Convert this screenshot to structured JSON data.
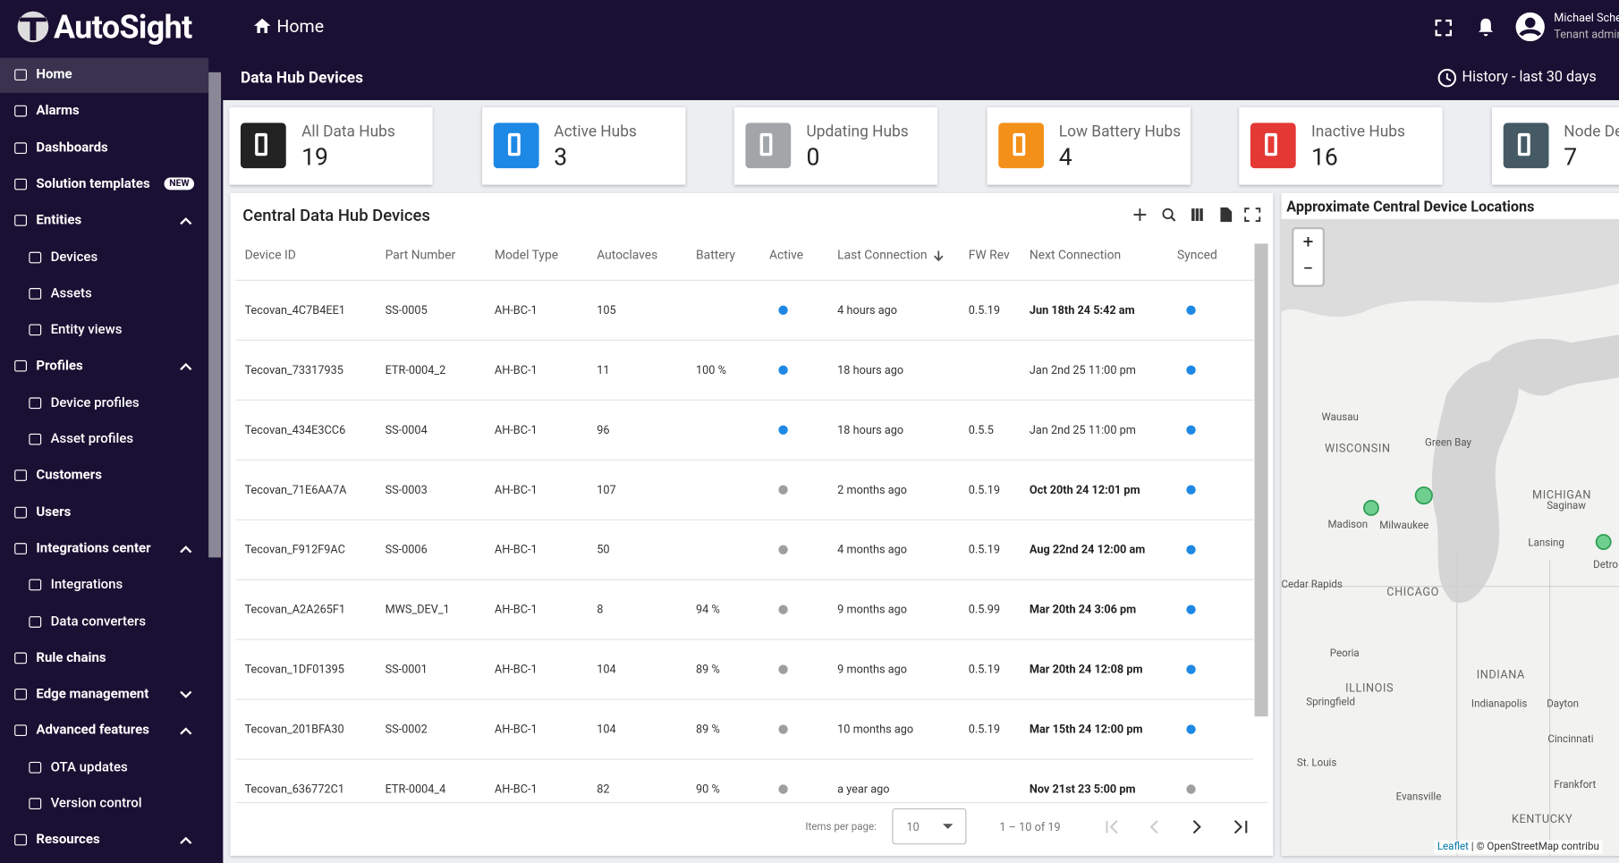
{
  "header": {
    "logo": "AutoSight",
    "page": "Home",
    "user_name": "Michael Sche",
    "user_role": "Tenant admin",
    "section_title": "Data Hub Devices",
    "history": "History - last 30 days"
  },
  "sidebar": {
    "items": [
      {
        "label": "Home",
        "level": 0,
        "active": true
      },
      {
        "label": "Alarms",
        "level": 0
      },
      {
        "label": "Dashboards",
        "level": 0
      },
      {
        "label": "Solution templates",
        "level": 0,
        "badge": "NEW"
      },
      {
        "label": "Entities",
        "level": 0,
        "chevron": "up"
      },
      {
        "label": "Devices",
        "level": 1
      },
      {
        "label": "Assets",
        "level": 1
      },
      {
        "label": "Entity views",
        "level": 1
      },
      {
        "label": "Profiles",
        "level": 0,
        "chevron": "up"
      },
      {
        "label": "Device profiles",
        "level": 1
      },
      {
        "label": "Asset profiles",
        "level": 1
      },
      {
        "label": "Customers",
        "level": 0
      },
      {
        "label": "Users",
        "level": 0
      },
      {
        "label": "Integrations center",
        "level": 0,
        "chevron": "up"
      },
      {
        "label": "Integrations",
        "level": 1
      },
      {
        "label": "Data converters",
        "level": 1
      },
      {
        "label": "Rule chains",
        "level": 0
      },
      {
        "label": "Edge management",
        "level": 0,
        "chevron": "down"
      },
      {
        "label": "Advanced features",
        "level": 0,
        "chevron": "up"
      },
      {
        "label": "OTA updates",
        "level": 1
      },
      {
        "label": "Version control",
        "level": 1
      },
      {
        "label": "Resources",
        "level": 0,
        "chevron": "up"
      }
    ]
  },
  "cards": [
    {
      "label": "All Data Hubs",
      "value": "19",
      "color": "#222222"
    },
    {
      "label": "Active Hubs",
      "value": "3",
      "color": "#1e88e5"
    },
    {
      "label": "Updating Hubs",
      "value": "0",
      "color": "#a2a6a9"
    },
    {
      "label": "Low Battery Hubs",
      "value": "4",
      "color": "#f39019"
    },
    {
      "label": "Inactive Hubs",
      "value": "16",
      "color": "#e53935"
    },
    {
      "label": "Node De",
      "value": "7",
      "color": "#455a64"
    }
  ],
  "table": {
    "title": "Central Data Hub Devices",
    "columns": [
      "Device ID",
      "Part Number",
      "Model Type",
      "Autoclaves",
      "Battery",
      "Active",
      "Last Connection",
      "FW Rev",
      "Next Connection",
      "Synced"
    ],
    "rows": [
      {
        "cells": [
          "Tecovan_4C7B4EE1",
          "SS-0005",
          "AH-BC-1",
          "105",
          "",
          "",
          "4 hours ago",
          "0.5.19",
          "Jun 18th 24 5:42 am",
          ""
        ],
        "active_color": "#1e88e5",
        "synced_color": "#1e88e5",
        "next_bold": true
      },
      {
        "cells": [
          "Tecovan_73317935",
          "ETR-0004_2",
          "AH-BC-1",
          "11",
          "100 %",
          "",
          "18 hours ago",
          "",
          "Jan 2nd 25 11:00 pm",
          ""
        ],
        "active_color": "#1e88e5",
        "synced_color": "#1e88e5",
        "next_bold": false
      },
      {
        "cells": [
          "Tecovan_434E3CC6",
          "SS-0004",
          "AH-BC-1",
          "96",
          "",
          "",
          "18 hours ago",
          "0.5.5",
          "Jan 2nd 25 11:00 pm",
          ""
        ],
        "active_color": "#1e88e5",
        "synced_color": "#1e88e5",
        "next_bold": false
      },
      {
        "cells": [
          "Tecovan_71E6AA7A",
          "SS-0003",
          "AH-BC-1",
          "107",
          "",
          "",
          "2 months ago",
          "0.5.19",
          "Oct 20th 24 12:01 pm",
          ""
        ],
        "active_color": "#9e9e9e",
        "synced_color": "#1e88e5",
        "next_bold": true
      },
      {
        "cells": [
          "Tecovan_F912F9AC",
          "SS-0006",
          "AH-BC-1",
          "50",
          "",
          "",
          "4 months ago",
          "0.5.19",
          "Aug 22nd 24 12:00 am",
          ""
        ],
        "active_color": "#9e9e9e",
        "synced_color": "#1e88e5",
        "next_bold": true
      },
      {
        "cells": [
          "Tecovan_A2A265F1",
          "MWS_DEV_1",
          "AH-BC-1",
          "8",
          "94 %",
          "",
          "9 months ago",
          "0.5.99",
          "Mar 20th 24 3:06 pm",
          ""
        ],
        "active_color": "#9e9e9e",
        "synced_color": "#1e88e5",
        "next_bold": true
      },
      {
        "cells": [
          "Tecovan_1DF01395",
          "SS-0001",
          "AH-BC-1",
          "104",
          "89 %",
          "",
          "9 months ago",
          "0.5.19",
          "Mar 20th 24 12:08 pm",
          ""
        ],
        "active_color": "#9e9e9e",
        "synced_color": "#1e88e5",
        "next_bold": true
      },
      {
        "cells": [
          "Tecovan_201BFA30",
          "SS-0002",
          "AH-BC-1",
          "104",
          "89 %",
          "",
          "10 months ago",
          "0.5.19",
          "Mar 15th 24 12:00 pm",
          ""
        ],
        "active_color": "#9e9e9e",
        "synced_color": "#1e88e5",
        "next_bold": true
      },
      {
        "cells": [
          "Tecovan_636772C1",
          "ETR-0004_4",
          "AH-BC-1",
          "82",
          "90 %",
          "",
          "a year ago",
          "",
          "Nov 21st 23 5:00 pm",
          ""
        ],
        "active_color": "#9e9e9e",
        "synced_color": "#9e9e9e",
        "next_bold": true
      }
    ],
    "items_per_page_label": "Items per page:",
    "items_per_page": "10",
    "range": "1 – 10 of 19"
  },
  "map": {
    "title": "Approximate Central Device Locations",
    "labels": [
      "Wausau",
      "WISCONSIN",
      "Green Bay",
      "Madison",
      "Milwaukee",
      "MICHIGAN",
      "Saginaw",
      "Lansing",
      "Detro",
      "Cedar Rapids",
      "CHICAGO",
      "Peoria",
      "ILLINOIS",
      "INDIANA",
      "Springfield",
      "Indianapolis",
      "Dayton",
      "Cincinnati",
      "St. Louis",
      "Evansville",
      "Frankfort",
      "KENTUCKY"
    ],
    "attribution_leaflet": "Leaflet",
    "attribution_rest": "| © OpenStreetMap contribu"
  }
}
